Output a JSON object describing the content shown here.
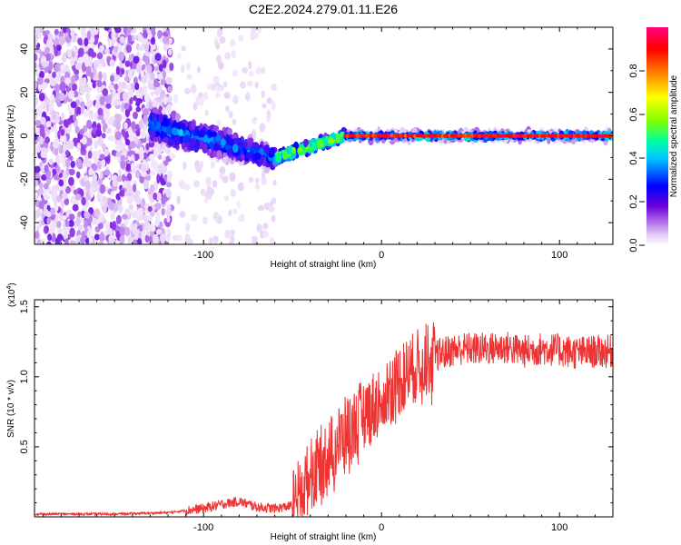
{
  "title": "C2E2.2024.279.01.11.E26",
  "chart_data": [
    {
      "type": "heatmap",
      "xlabel": "Height of straight line (km)",
      "ylabel": "Frequency (Hz)",
      "xlim": [
        -195,
        130
      ],
      "ylim": [
        -50,
        50
      ],
      "xticks": [
        -100,
        0,
        100
      ],
      "yticks": [
        -40,
        -20,
        0,
        20,
        40
      ],
      "grid": false,
      "colorbar": {
        "label": "Normalized spectral amplitude",
        "range": [
          0,
          1
        ],
        "ticks": [
          "0.0",
          "0.2",
          "0.4",
          "0.6",
          "0.8"
        ],
        "colormap": [
          "#ffffff",
          "#e2c8f5",
          "#8a2be2",
          "#0000ff",
          "#00c8ff",
          "#00ff80",
          "#80ff00",
          "#ffff00",
          "#ff8000",
          "#ff0000",
          "#ff0080"
        ]
      },
      "regions": [
        {
          "x": [
            -195,
            -118
          ],
          "freq_spread_hz": 50,
          "amplitude": 0.12,
          "description": "noise"
        },
        {
          "x": [
            -130,
            -60
          ],
          "freq_center_hz": [
            5,
            -10
          ],
          "amplitude": 0.3
        },
        {
          "x": [
            -60,
            -20
          ],
          "freq_center_hz": [
            -10,
            0
          ],
          "amplitude": 0.5
        },
        {
          "x": [
            -20,
            130
          ],
          "freq_center_hz": 0,
          "amplitude": 0.9
        }
      ]
    },
    {
      "type": "line",
      "xlabel": "Height of straight line (km)",
      "ylabel": "SNR (10 * v/v)",
      "y_multiplier_label": "(x10",
      "y_multiplier_exp": "4",
      "y_multiplier_close": ")",
      "xlim": [
        -195,
        130
      ],
      "ylim": [
        0,
        1.55
      ],
      "xticks": [
        -100,
        0,
        100
      ],
      "yticks": [
        "0.5",
        "1.0",
        "1.5"
      ],
      "color": "#ee3333",
      "series": [
        {
          "x": [
            -195,
            -150,
            -120,
            -100,
            -90,
            -80,
            -70,
            -60,
            -50,
            -45,
            -40,
            -35,
            -30,
            -25,
            -20,
            -15,
            -10,
            -5,
            0,
            5,
            10,
            15,
            20,
            25,
            30,
            35,
            40,
            45,
            50,
            60,
            70,
            80,
            90,
            100,
            110,
            120,
            130
          ],
          "y": [
            0.02,
            0.02,
            0.03,
            0.06,
            0.09,
            0.11,
            0.07,
            0.06,
            0.08,
            0.18,
            0.3,
            0.38,
            0.45,
            0.52,
            0.6,
            0.66,
            0.73,
            0.78,
            0.85,
            0.92,
            0.98,
            1.03,
            1.08,
            1.12,
            1.15,
            1.17,
            1.19,
            1.2,
            1.2,
            1.2,
            1.21,
            1.18,
            1.2,
            1.19,
            1.17,
            1.18,
            1.18
          ]
        }
      ]
    }
  ]
}
